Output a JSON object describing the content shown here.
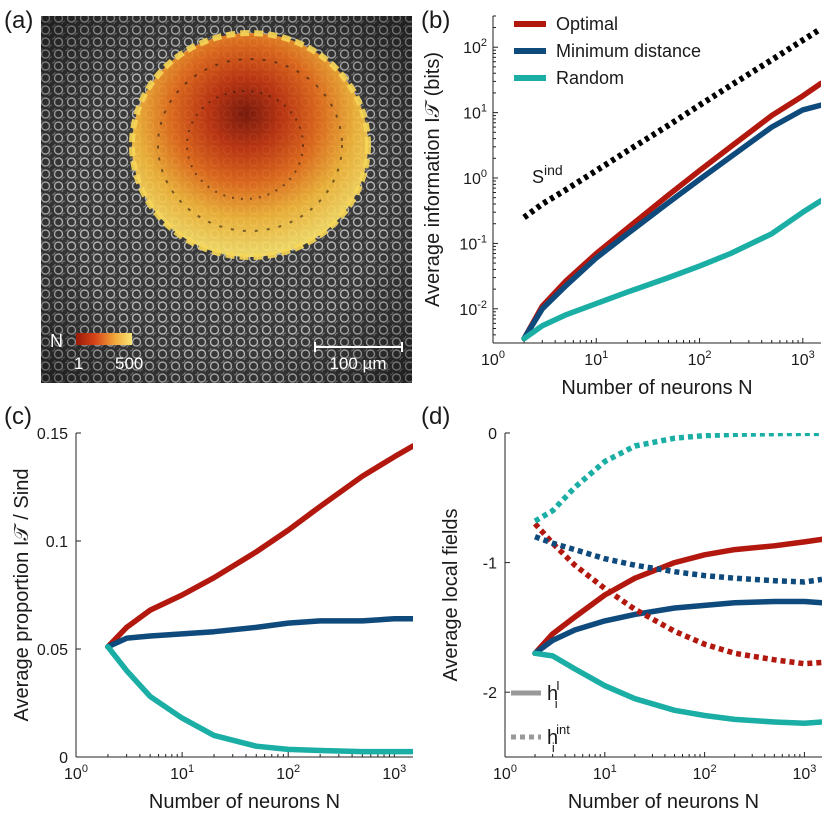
{
  "colors": {
    "optimal": "#b3180f",
    "mindist": "#0f4a7c",
    "random": "#1aaea5",
    "sind": "#000000",
    "axis": "#222222"
  },
  "panel_a": {
    "label": "(a)",
    "colorbar_label": "N",
    "colorbar_min": "1",
    "colorbar_max": "500",
    "scalebar_label": "100 µm"
  },
  "panel_b": {
    "label": "(b)"
  },
  "panel_c": {
    "label": "(c)"
  },
  "panel_d": {
    "label": "(d)"
  },
  "chart_data": [
    {
      "id": "b",
      "type": "line",
      "xscale": "log",
      "yscale": "log",
      "xlim": [
        1,
        1500
      ],
      "ylim": [
        0.003,
        300
      ],
      "xlabel": "Number of neurons N",
      "ylabel": "Average information I𝒯 (bits)",
      "xticks": [
        {
          "v": 1,
          "m": "10",
          "e": "0"
        },
        {
          "v": 10,
          "m": "10",
          "e": "1"
        },
        {
          "v": 100,
          "m": "10",
          "e": "2"
        },
        {
          "v": 1000,
          "m": "10",
          "e": "3"
        }
      ],
      "yticks": [
        {
          "v": 0.01,
          "m": "10",
          "e": "-2"
        },
        {
          "v": 0.1,
          "m": "10",
          "e": "-1"
        },
        {
          "v": 1,
          "m": "10",
          "e": "0"
        },
        {
          "v": 10,
          "m": "10",
          "e": "1"
        },
        {
          "v": 100,
          "m": "10",
          "e": "2"
        }
      ],
      "legend": [
        "Optimal",
        "Minimum distance",
        "Random"
      ],
      "annotation": {
        "base": "S",
        "sup": "ind"
      },
      "x": [
        2,
        3,
        5,
        10,
        20,
        50,
        100,
        200,
        500,
        1000,
        1500
      ],
      "series": [
        {
          "name": "Optimal",
          "color_key": "optimal",
          "style": "solid",
          "values": [
            0.0035,
            0.011,
            0.026,
            0.07,
            0.17,
            0.55,
            1.3,
            3.0,
            9.0,
            18,
            28
          ]
        },
        {
          "name": "Minimum distance",
          "color_key": "mindist",
          "style": "solid",
          "values": [
            0.0035,
            0.01,
            0.022,
            0.06,
            0.14,
            0.42,
            0.95,
            2.1,
            6.0,
            11,
            13
          ]
        },
        {
          "name": "Random",
          "color_key": "random",
          "style": "solid",
          "values": [
            0.0035,
            0.0055,
            0.008,
            0.012,
            0.018,
            0.03,
            0.045,
            0.07,
            0.14,
            0.3,
            0.45
          ]
        },
        {
          "name": "Sind",
          "color_key": "sind",
          "style": "dotted",
          "values": [
            0.25,
            0.4,
            0.65,
            1.3,
            2.6,
            6.4,
            13,
            26,
            64,
            128,
            192
          ]
        }
      ]
    },
    {
      "id": "c",
      "type": "line",
      "xscale": "log",
      "yscale": "linear",
      "xlim": [
        1,
        1500
      ],
      "ylim": [
        0,
        0.15
      ],
      "xlabel": "Number of neurons N",
      "ylabel": "Average proportion I𝒯 / Sind",
      "xticks": [
        {
          "v": 1,
          "m": "10",
          "e": "0"
        },
        {
          "v": 10,
          "m": "10",
          "e": "1"
        },
        {
          "v": 100,
          "m": "10",
          "e": "2"
        },
        {
          "v": 1000,
          "m": "10",
          "e": "3"
        }
      ],
      "yticks": [
        {
          "v": 0,
          "t": "0"
        },
        {
          "v": 0.05,
          "t": "0.05"
        },
        {
          "v": 0.1,
          "t": "0.1"
        },
        {
          "v": 0.15,
          "t": "0.15"
        }
      ],
      "x": [
        2,
        3,
        5,
        10,
        20,
        50,
        100,
        200,
        500,
        1000,
        1500
      ],
      "series": [
        {
          "name": "Optimal",
          "color_key": "optimal",
          "style": "solid",
          "values": [
            0.051,
            0.06,
            0.068,
            0.075,
            0.083,
            0.095,
            0.105,
            0.116,
            0.13,
            0.139,
            0.144
          ]
        },
        {
          "name": "Minimum distance",
          "color_key": "mindist",
          "style": "solid",
          "values": [
            0.051,
            0.055,
            0.056,
            0.057,
            0.058,
            0.06,
            0.062,
            0.063,
            0.063,
            0.064,
            0.064
          ]
        },
        {
          "name": "Random",
          "color_key": "random",
          "style": "solid",
          "values": [
            0.051,
            0.04,
            0.028,
            0.018,
            0.01,
            0.005,
            0.0035,
            0.003,
            0.0025,
            0.0025,
            0.0025
          ]
        }
      ]
    },
    {
      "id": "d",
      "type": "line",
      "xscale": "log",
      "yscale": "linear",
      "xlim": [
        1,
        1500
      ],
      "ylim": [
        -2.5,
        0
      ],
      "xlabel": "Number of neurons N",
      "ylabel": "Average local fields",
      "xticks": [
        {
          "v": 1,
          "m": "10",
          "e": "0"
        },
        {
          "v": 10,
          "m": "10",
          "e": "1"
        },
        {
          "v": 100,
          "m": "10",
          "e": "2"
        },
        {
          "v": 1000,
          "m": "10",
          "e": "3"
        }
      ],
      "yticks": [
        {
          "v": -2,
          "t": "-2"
        },
        {
          "v": -1,
          "t": "-1"
        },
        {
          "v": 0,
          "t": "0"
        }
      ],
      "legend_items": [
        {
          "base": "h",
          "sub": "i",
          "sup": "I",
          "style": "solid"
        },
        {
          "base": "h",
          "sub": "i",
          "sup": "int",
          "style": "dotted"
        }
      ],
      "x": [
        2,
        3,
        5,
        10,
        20,
        50,
        100,
        200,
        500,
        1000,
        1500
      ],
      "series": [
        {
          "name": "Optimal hI",
          "color_key": "optimal",
          "style": "solid",
          "values": [
            -1.7,
            -1.55,
            -1.42,
            -1.25,
            -1.12,
            -1.0,
            -0.94,
            -0.9,
            -0.87,
            -0.84,
            -0.82
          ]
        },
        {
          "name": "Minimum distance hI",
          "color_key": "mindist",
          "style": "solid",
          "values": [
            -1.7,
            -1.6,
            -1.52,
            -1.45,
            -1.4,
            -1.35,
            -1.33,
            -1.31,
            -1.3,
            -1.3,
            -1.31
          ]
        },
        {
          "name": "Random hI",
          "color_key": "random",
          "style": "solid",
          "values": [
            -1.7,
            -1.72,
            -1.82,
            -1.95,
            -2.05,
            -2.14,
            -2.18,
            -2.21,
            -2.23,
            -2.24,
            -2.23
          ]
        },
        {
          "name": "Optimal hint",
          "color_key": "optimal",
          "style": "dotted",
          "values": [
            -0.7,
            -0.85,
            -1.02,
            -1.2,
            -1.36,
            -1.53,
            -1.63,
            -1.7,
            -1.75,
            -1.78,
            -1.77
          ]
        },
        {
          "name": "Minimum distance hint",
          "color_key": "mindist",
          "style": "dotted",
          "values": [
            -0.8,
            -0.85,
            -0.9,
            -0.97,
            -1.02,
            -1.07,
            -1.1,
            -1.12,
            -1.14,
            -1.15,
            -1.13
          ]
        },
        {
          "name": "Random hint",
          "color_key": "random",
          "style": "dotted",
          "values": [
            -0.68,
            -0.6,
            -0.42,
            -0.22,
            -0.1,
            -0.04,
            -0.02,
            -0.01,
            -0.005,
            -0.003,
            -0.003
          ]
        }
      ]
    }
  ]
}
